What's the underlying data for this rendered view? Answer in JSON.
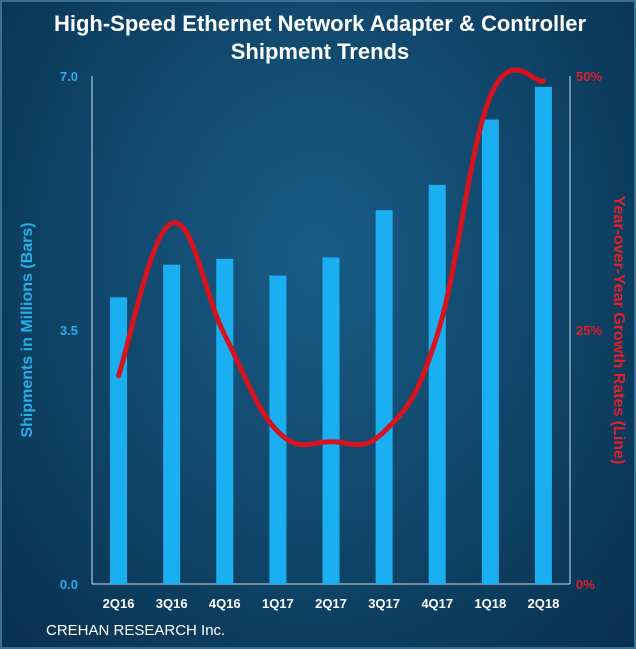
{
  "chart_data": {
    "type": "bar+line",
    "title_lines": [
      "High-Speed Ethernet Network Adapter & Controller",
      "Shipment Trends"
    ],
    "categories": [
      "2Q16",
      "3Q16",
      "4Q16",
      "1Q17",
      "2Q17",
      "3Q17",
      "4Q17",
      "1Q18",
      "2Q18"
    ],
    "bar_series": {
      "values": [
        3.95,
        4.4,
        4.48,
        4.25,
        4.5,
        5.15,
        5.5,
        6.4,
        6.85
      ],
      "color": "#19aff0"
    },
    "line_series": {
      "values": [
        20.5,
        35.5,
        24.5,
        15,
        14,
        15,
        24.5,
        48,
        49.5
      ],
      "color": "#d7141d"
    },
    "left_axis": {
      "label": "Shipments in Millions (Bars)",
      "ylim": [
        0,
        7
      ],
      "ticks": [
        "0.0",
        "3.5",
        "7.0"
      ],
      "tick_values": [
        0,
        3.5,
        7
      ]
    },
    "right_axis": {
      "label": "Year-over-Year Growth Rates (Line)",
      "ylim": [
        0,
        50
      ],
      "ticks": [
        "0%",
        "25%",
        "50%"
      ],
      "tick_values": [
        0,
        25,
        50
      ]
    },
    "grid": false,
    "legend": "none"
  },
  "footer": {
    "source": "CREHAN RESEARCH Inc."
  }
}
